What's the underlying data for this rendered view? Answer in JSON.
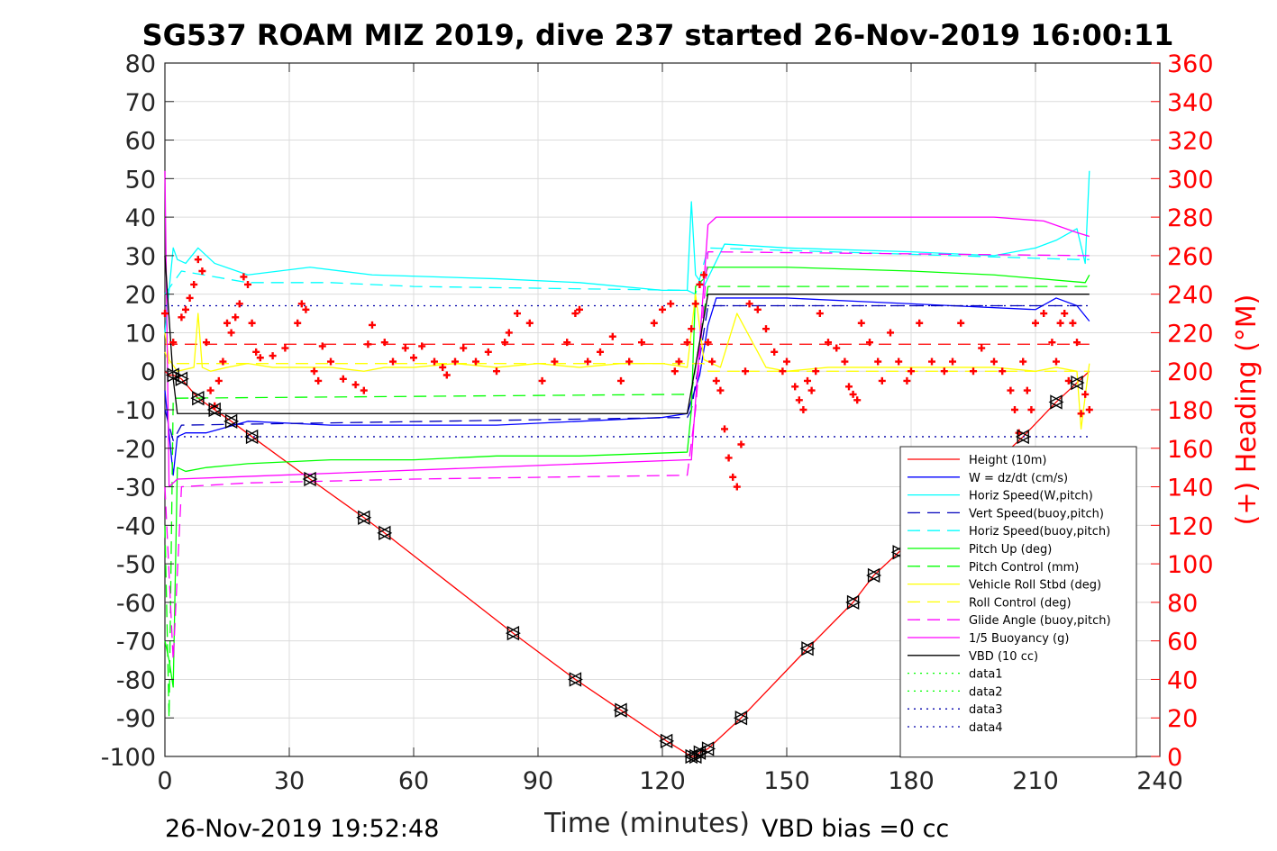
{
  "chart_data": {
    "type": "line",
    "title": "SG537 ROAM MIZ 2019, dive 237 started 26-Nov-2019 16:00:11",
    "xlabel": "Time (minutes)",
    "ylabel_right": "(+) Heading (°M)",
    "footer_left": "26-Nov-2019 19:52:48",
    "footer_right": "VBD bias =0 cc",
    "xlim": [
      0,
      240
    ],
    "ylim": [
      -100,
      80
    ],
    "ylim_right": [
      0,
      360
    ],
    "xticks": [
      "0",
      "30",
      "60",
      "90",
      "120",
      "150",
      "180",
      "210",
      "240"
    ],
    "yticks": [
      "80",
      "70",
      "60",
      "50",
      "40",
      "30",
      "20",
      "10",
      "0",
      "-10",
      "-20",
      "-30",
      "-40",
      "-50",
      "-60",
      "-70",
      "-80",
      "-90",
      "-100"
    ],
    "yticks_right": [
      "360",
      "340",
      "320",
      "300",
      "280",
      "260",
      "240",
      "220",
      "200",
      "180",
      "160",
      "140",
      "120",
      "100",
      "80",
      "60",
      "40",
      "20",
      "0"
    ],
    "grid": true,
    "legend_position": "lower-right",
    "series": [
      {
        "name": "Height (10m)",
        "color": "#ff0000",
        "style": "solid",
        "x": [
          0,
          1,
          2,
          4,
          8,
          12,
          16,
          21,
          35,
          48,
          53,
          84,
          99,
          110,
          121,
          127,
          128,
          129,
          131,
          139,
          155,
          166,
          171,
          177,
          207,
          215,
          220,
          223
        ],
        "y": [
          0,
          -1,
          -1,
          -2,
          -7,
          -10,
          -13,
          -17,
          -28,
          -38,
          -42,
          -68,
          -80,
          -88,
          -96,
          -100,
          -100,
          -99,
          -98,
          -90,
          -72,
          -60,
          -53,
          -47,
          -17,
          -8,
          -3,
          0
        ]
      },
      {
        "name": "W = dz/dt (cm/s)",
        "color": "#0000ff",
        "style": "solid",
        "x": [
          0,
          2,
          3,
          5,
          10,
          20,
          40,
          60,
          80,
          100,
          120,
          126,
          129,
          131,
          133,
          150,
          170,
          190,
          210,
          215,
          220,
          223
        ],
        "y": [
          -5,
          -27,
          -17,
          -16,
          -16,
          -13,
          -14,
          -14,
          -14,
          -13,
          -12,
          -11,
          -1,
          12,
          19,
          19,
          18,
          17,
          16,
          19,
          17,
          13
        ]
      },
      {
        "name": "Horiz Speed(W,pitch)",
        "color": "#00ffff",
        "style": "solid",
        "x": [
          0,
          2,
          3,
          5,
          8,
          12,
          20,
          35,
          50,
          80,
          100,
          120,
          126,
          127,
          128,
          130,
          135,
          150,
          180,
          200,
          210,
          215,
          220,
          222,
          223
        ],
        "y": [
          10,
          32,
          29,
          28,
          32,
          28,
          25,
          27,
          25,
          24,
          23,
          21,
          21,
          44,
          25,
          22,
          33,
          32,
          31,
          30,
          32,
          34,
          37,
          28,
          52
        ]
      },
      {
        "name": "Vert Speed(buoy,pitch)",
        "color": "#0000bb",
        "style": "dashed",
        "x": [
          0,
          2,
          4,
          126,
          127,
          131,
          223
        ],
        "y": [
          -10,
          -18,
          -14,
          -12,
          -10,
          17,
          17
        ]
      },
      {
        "name": "Horiz Speed(buoy,pitch)",
        "color": "#00ffff",
        "style": "dashed",
        "x": [
          0,
          4,
          20,
          40,
          60,
          126,
          128,
          131,
          220,
          223
        ],
        "y": [
          20,
          26,
          23,
          23,
          22,
          21,
          20,
          32,
          29,
          29
        ]
      },
      {
        "name": "Pitch Up (deg)",
        "color": "#00ff00",
        "style": "solid",
        "x": [
          0,
          1,
          2,
          3,
          5,
          10,
          20,
          40,
          60,
          80,
          100,
          126,
          127,
          128,
          130,
          131,
          150,
          180,
          200,
          222,
          223
        ],
        "y": [
          -70,
          -75,
          -82,
          -25,
          -26,
          -25,
          -24,
          -23,
          -23,
          -22,
          -22,
          -21,
          -10,
          22,
          24,
          27,
          27,
          26,
          25,
          23,
          25
        ]
      },
      {
        "name": "Pitch Control (mm)",
        "color": "#00ff00",
        "style": "dashed",
        "x": [
          0,
          1,
          2,
          3,
          126,
          127,
          131,
          223
        ],
        "y": [
          -40,
          -90,
          -7,
          -7,
          -6,
          -6,
          22,
          22
        ]
      },
      {
        "name": "Vehicle Roll Stbd (deg)",
        "color": "#ffff00",
        "style": "solid",
        "x": [
          0,
          1,
          3,
          7,
          8,
          9,
          11,
          15,
          20,
          26,
          33,
          40,
          48,
          53,
          60,
          70,
          80,
          90,
          100,
          110,
          120,
          126,
          128,
          130,
          134,
          138,
          145,
          150,
          160,
          170,
          180,
          190,
          200,
          210,
          215,
          220,
          221,
          223
        ],
        "y": [
          10,
          3,
          0,
          1,
          15,
          1,
          0,
          1,
          2,
          1,
          1,
          1,
          0,
          1,
          1,
          2,
          1,
          2,
          1,
          2,
          2,
          1,
          20,
          3,
          1,
          15,
          1,
          0,
          1,
          1,
          1,
          1,
          1,
          0,
          1,
          0,
          -15,
          2
        ]
      },
      {
        "name": "Roll Control (deg)",
        "color": "#ffff00",
        "style": "dashed",
        "x": [
          0,
          1,
          2,
          130,
          131,
          223
        ],
        "y": [
          5,
          2,
          2,
          2,
          0,
          0
        ]
      },
      {
        "name": "Glide Angle (buoy,pitch)",
        "color": "#ff00ff",
        "style": "dashed",
        "x": [
          0,
          2,
          4,
          20,
          60,
          126,
          128,
          131,
          223
        ],
        "y": [
          -30,
          -75,
          -30,
          -29,
          -28,
          -27,
          -10,
          31,
          30
        ]
      },
      {
        "name": "1/5 Buoyancy (g)",
        "color": "#ff00ff",
        "style": "solid",
        "x": [
          0,
          1,
          3,
          126,
          127,
          131,
          133,
          200,
          212,
          220,
          223
        ],
        "y": [
          52,
          -30,
          -28,
          -23,
          -23,
          38,
          40,
          40,
          39,
          36,
          35
        ]
      },
      {
        "name": "VBD (10 cc)",
        "color": "#000000",
        "style": "solid",
        "x": [
          0,
          2,
          3,
          126,
          131,
          223
        ],
        "y": [
          30,
          -2,
          -11,
          -11,
          20,
          20
        ]
      },
      {
        "name": "data1",
        "color": "#00ff00",
        "style": "dotted",
        "x": [],
        "y": []
      },
      {
        "name": "data2",
        "color": "#00ff00",
        "style": "dotted",
        "x": [],
        "y": []
      },
      {
        "name": "data3",
        "color": "#0000aa",
        "style": "dotted",
        "x": [
          0,
          223
        ],
        "y": [
          17,
          17
        ]
      },
      {
        "name": "data4",
        "color": "#0000aa",
        "style": "dotted",
        "x": [
          0,
          223
        ],
        "y": [
          -17,
          -17
        ]
      }
    ],
    "reference_lines": [
      {
        "color": "#ff0000",
        "style": "dashed",
        "x": [
          0,
          223
        ],
        "y": [
          7,
          7
        ]
      }
    ],
    "heading": {
      "color": "#ff0000",
      "marker": "+",
      "axis": "right",
      "x": [
        0,
        2,
        4,
        5,
        6,
        7,
        8,
        9,
        10,
        11,
        12,
        13,
        14,
        15,
        16,
        17,
        18,
        19,
        20,
        21,
        22,
        23,
        26,
        29,
        32,
        33,
        34,
        36,
        37,
        38,
        40,
        43,
        46,
        48,
        49,
        50,
        53,
        55,
        58,
        60,
        62,
        65,
        67,
        68,
        70,
        72,
        75,
        78,
        80,
        82,
        83,
        85,
        88,
        91,
        94,
        97,
        99,
        100,
        102,
        105,
        108,
        110,
        112,
        115,
        118,
        120,
        122,
        123,
        124,
        126,
        127,
        128,
        129,
        130,
        131,
        132,
        133,
        134,
        135,
        136,
        137,
        138,
        139,
        140,
        141,
        143,
        145,
        147,
        149,
        150,
        152,
        153,
        154,
        155,
        156,
        157,
        158,
        160,
        162,
        164,
        165,
        166,
        167,
        168,
        170,
        172,
        173,
        175,
        177,
        179,
        180,
        182,
        185,
        188,
        190,
        192,
        195,
        197,
        200,
        202,
        204,
        205,
        206,
        207,
        208,
        209,
        210,
        212,
        214,
        215,
        216,
        217,
        218,
        219,
        220,
        221,
        222,
        223
      ],
      "y": [
        230,
        215,
        228,
        232,
        238,
        245,
        258,
        252,
        215,
        190,
        182,
        195,
        205,
        225,
        220,
        228,
        235,
        249,
        245,
        225,
        210,
        207,
        208,
        212,
        225,
        235,
        232,
        200,
        195,
        213,
        205,
        196,
        193,
        190,
        214,
        224,
        215,
        205,
        212,
        207,
        213,
        205,
        202,
        198,
        205,
        212,
        205,
        210,
        200,
        215,
        220,
        230,
        225,
        195,
        205,
        215,
        230,
        232,
        205,
        210,
        218,
        195,
        205,
        215,
        225,
        232,
        235,
        200,
        205,
        215,
        222,
        235,
        245,
        250,
        215,
        205,
        195,
        190,
        170,
        155,
        145,
        140,
        162,
        200,
        235,
        232,
        222,
        210,
        200,
        205,
        192,
        185,
        180,
        195,
        190,
        200,
        230,
        215,
        212,
        205,
        192,
        188,
        185,
        225,
        215,
        205,
        195,
        220,
        205,
        195,
        200,
        225,
        205,
        200,
        205,
        225,
        200,
        212,
        205,
        200,
        190,
        180,
        168,
        205,
        190,
        180,
        225,
        230,
        215,
        205,
        225,
        230,
        195,
        225,
        215,
        178,
        188,
        180
      ]
    },
    "markers": {
      "color": "#000000",
      "x": [
        2,
        4,
        8,
        12,
        16,
        21,
        35,
        48,
        53,
        84,
        99,
        110,
        121,
        127,
        128,
        129,
        131,
        139,
        155,
        166,
        171,
        177,
        207,
        215,
        220
      ],
      "y": [
        -1,
        -2,
        -7,
        -10,
        -13,
        -17,
        -28,
        -38,
        -42,
        -68,
        -80,
        -88,
        -96,
        -100,
        -100,
        -99,
        -98,
        -90,
        -72,
        -60,
        -53,
        -47,
        -17,
        -8,
        -3
      ]
    }
  }
}
